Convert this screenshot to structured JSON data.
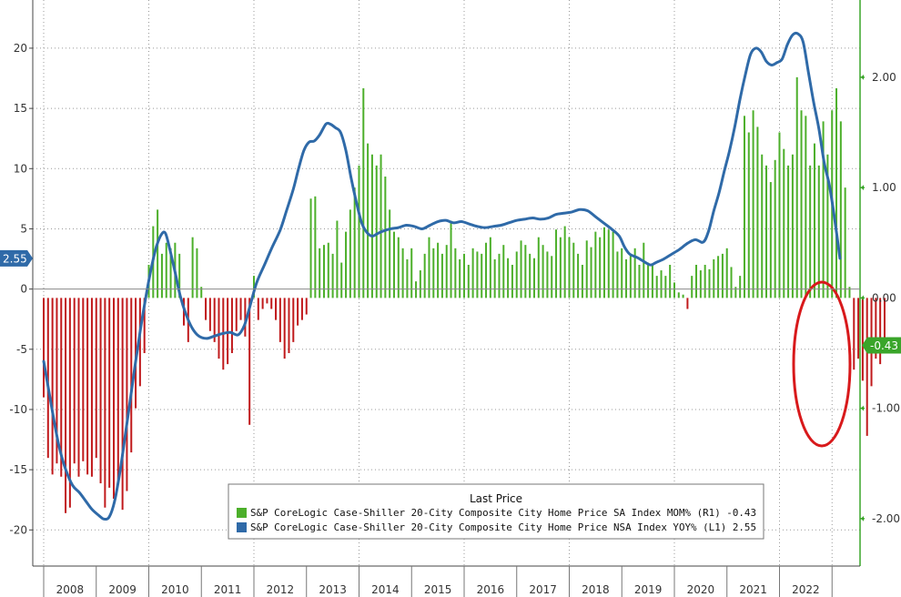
{
  "chart_data": {
    "type": "bar+line",
    "colors": {
      "mom_positive": "#4caf2a",
      "mom_negative": "#c0191b",
      "yoy_line": "#2f6aa8",
      "right_axis": "#3aa52a",
      "highlight_circle": "#d8191b",
      "grid": "#999999"
    },
    "left_axis": {
      "ylim": [
        -23,
        24
      ],
      "ticks": [
        20,
        15,
        10,
        5,
        0,
        -5,
        -10,
        -15,
        -20
      ],
      "tick_labels": [
        "20",
        "15",
        "10",
        "5",
        "0",
        "-5",
        "-10",
        "-15",
        "-20"
      ],
      "last_value_label": "2.55"
    },
    "right_axis": {
      "ylim": [
        -2.43,
        2.7
      ],
      "ticks": [
        2.0,
        1.0,
        0.0,
        -1.0,
        -2.0
      ],
      "tick_labels": [
        "2.00",
        "1.00",
        "0.00",
        "-1.00",
        "-2.00"
      ],
      "last_value_label": "-0.43"
    },
    "x_axis": {
      "start": 2008.0,
      "end": 2023.15,
      "years": [
        "2008",
        "2009",
        "2010",
        "2011",
        "2012",
        "2013",
        "2014",
        "2015",
        "2016",
        "2017",
        "2018",
        "2019",
        "2020",
        "2021",
        "2022"
      ]
    },
    "legend": {
      "title": "Last Price",
      "entries": [
        "S&P CoreLogic Case-Shiller 20-City Composite City Home Price SA Index MOM%  (R1) -0.43",
        "S&P CoreLogic Case-Shiller 20-City Composite City Home Price NSA Index YOY%  (L1) 2.55"
      ]
    },
    "mom_series": {
      "name": "S&P CoreLogic Case-Shiller 20-City Composite City Home Price SA Index MOM% (R1)",
      "axis": "right",
      "start": 2008.0,
      "step": 0.08333,
      "values": [
        -0.9,
        -1.45,
        -1.6,
        -1.5,
        -1.62,
        -1.95,
        -1.9,
        -1.5,
        -1.62,
        -1.48,
        -1.6,
        -1.62,
        -1.45,
        -1.68,
        -1.9,
        -1.72,
        -1.82,
        -1.65,
        -1.92,
        -1.75,
        -1.4,
        -1.0,
        -0.8,
        -0.5,
        0.3,
        0.65,
        0.8,
        0.4,
        0.5,
        0.45,
        0.5,
        0.4,
        -0.25,
        -0.4,
        0.55,
        0.45,
        0.1,
        -0.2,
        -0.3,
        -0.4,
        -0.55,
        -0.65,
        -0.6,
        -0.5,
        -0.3,
        -0.2,
        -0.35,
        -1.15,
        0.2,
        -0.2,
        -0.1,
        -0.05,
        -0.1,
        -0.2,
        -0.4,
        -0.55,
        -0.5,
        -0.4,
        -0.25,
        -0.2,
        -0.15,
        0.9,
        0.92,
        0.45,
        0.48,
        0.5,
        0.4,
        0.7,
        0.32,
        0.6,
        0.8,
        1.0,
        1.2,
        1.9,
        1.4,
        1.3,
        1.2,
        1.3,
        1.1,
        0.8,
        0.6,
        0.55,
        0.45,
        0.35,
        0.45,
        0.15,
        0.25,
        0.4,
        0.55,
        0.45,
        0.5,
        0.4,
        0.48,
        0.7,
        0.45,
        0.35,
        0.4,
        0.3,
        0.45,
        0.42,
        0.4,
        0.5,
        0.55,
        0.35,
        0.4,
        0.48,
        0.36,
        0.3,
        0.42,
        0.52,
        0.48,
        0.4,
        0.36,
        0.55,
        0.48,
        0.42,
        0.38,
        0.62,
        0.55,
        0.65,
        0.55,
        0.5,
        0.4,
        0.3,
        0.52,
        0.46,
        0.6,
        0.55,
        0.64,
        0.62,
        0.6,
        0.42,
        0.45,
        0.35,
        0.4,
        0.45,
        0.3,
        0.5,
        0.32,
        0.3,
        0.2,
        0.25,
        0.2,
        0.3,
        0.14,
        0.05,
        0.03,
        -0.1,
        0.2,
        0.3,
        0.25,
        0.3,
        0.26,
        0.35,
        0.38,
        0.4,
        0.45,
        0.28,
        0.1,
        0.2,
        1.65,
        1.5,
        1.7,
        1.55,
        1.3,
        1.2,
        1.05,
        1.25,
        1.5,
        1.35,
        1.2,
        1.3,
        2.0,
        1.7,
        1.65,
        1.2,
        1.4,
        1.2,
        1.6,
        1.3,
        1.7,
        1.9,
        1.6,
        1.0,
        0.1,
        -0.65,
        -0.55,
        -0.75,
        -1.25,
        -0.8,
        -0.55,
        -0.6,
        -0.43
      ]
    },
    "yoy_series": {
      "name": "S&P CoreLogic Case-Shiller 20-City Composite City Home Price NSA Index YOY% (L1)",
      "axis": "left",
      "points": [
        [
          2008.0,
          -6.0
        ],
        [
          2008.1,
          -8.5
        ],
        [
          2008.2,
          -11.0
        ],
        [
          2008.3,
          -13.2
        ],
        [
          2008.42,
          -15.0
        ],
        [
          2008.55,
          -16.3
        ],
        [
          2008.68,
          -16.9
        ],
        [
          2008.8,
          -17.6
        ],
        [
          2008.92,
          -18.3
        ],
        [
          2009.05,
          -18.8
        ],
        [
          2009.15,
          -19.1
        ],
        [
          2009.25,
          -18.9
        ],
        [
          2009.35,
          -17.6
        ],
        [
          2009.45,
          -15.2
        ],
        [
          2009.55,
          -12.2
        ],
        [
          2009.65,
          -9.1
        ],
        [
          2009.75,
          -6.0
        ],
        [
          2009.85,
          -3.1
        ],
        [
          2009.95,
          -0.5
        ],
        [
          2010.05,
          1.8
        ],
        [
          2010.15,
          3.6
        ],
        [
          2010.25,
          4.6
        ],
        [
          2010.32,
          4.6
        ],
        [
          2010.4,
          3.3
        ],
        [
          2010.5,
          1.4
        ],
        [
          2010.6,
          -0.6
        ],
        [
          2010.7,
          -2.0
        ],
        [
          2010.82,
          -3.2
        ],
        [
          2010.95,
          -3.9
        ],
        [
          2011.1,
          -4.1
        ],
        [
          2011.25,
          -3.9
        ],
        [
          2011.4,
          -3.7
        ],
        [
          2011.55,
          -3.6
        ],
        [
          2011.7,
          -3.8
        ],
        [
          2011.82,
          -3.0
        ],
        [
          2011.92,
          -1.5
        ],
        [
          2012.05,
          0.5
        ],
        [
          2012.2,
          2.0
        ],
        [
          2012.35,
          3.5
        ],
        [
          2012.5,
          4.9
        ],
        [
          2012.62,
          6.5
        ],
        [
          2012.75,
          8.3
        ],
        [
          2012.85,
          10.0
        ],
        [
          2012.95,
          11.5
        ],
        [
          2013.05,
          12.2
        ],
        [
          2013.15,
          12.3
        ],
        [
          2013.25,
          12.8
        ],
        [
          2013.37,
          13.7
        ],
        [
          2013.45,
          13.7
        ],
        [
          2013.55,
          13.4
        ],
        [
          2013.65,
          13.0
        ],
        [
          2013.75,
          11.5
        ],
        [
          2013.85,
          9.2
        ],
        [
          2013.95,
          7.2
        ],
        [
          2014.05,
          5.5
        ],
        [
          2014.15,
          4.7
        ],
        [
          2014.25,
          4.4
        ],
        [
          2014.35,
          4.6
        ],
        [
          2014.45,
          4.8
        ],
        [
          2014.6,
          5.0
        ],
        [
          2014.75,
          5.1
        ],
        [
          2014.9,
          5.3
        ],
        [
          2015.05,
          5.2
        ],
        [
          2015.2,
          5.0
        ],
        [
          2015.35,
          5.3
        ],
        [
          2015.5,
          5.6
        ],
        [
          2015.65,
          5.7
        ],
        [
          2015.8,
          5.5
        ],
        [
          2015.95,
          5.6
        ],
        [
          2016.1,
          5.4
        ],
        [
          2016.25,
          5.2
        ],
        [
          2016.4,
          5.1
        ],
        [
          2016.55,
          5.2
        ],
        [
          2016.7,
          5.3
        ],
        [
          2016.85,
          5.5
        ],
        [
          2017.0,
          5.7
        ],
        [
          2017.15,
          5.8
        ],
        [
          2017.3,
          5.9
        ],
        [
          2017.45,
          5.8
        ],
        [
          2017.6,
          5.9
        ],
        [
          2017.75,
          6.2
        ],
        [
          2017.9,
          6.3
        ],
        [
          2018.05,
          6.4
        ],
        [
          2018.2,
          6.6
        ],
        [
          2018.35,
          6.5
        ],
        [
          2018.5,
          6.0
        ],
        [
          2018.65,
          5.5
        ],
        [
          2018.8,
          5.0
        ],
        [
          2018.95,
          4.4
        ],
        [
          2019.05,
          3.5
        ],
        [
          2019.15,
          2.9
        ],
        [
          2019.3,
          2.6
        ],
        [
          2019.45,
          2.2
        ],
        [
          2019.55,
          2.0
        ],
        [
          2019.65,
          2.2
        ],
        [
          2019.8,
          2.5
        ],
        [
          2019.95,
          2.9
        ],
        [
          2020.1,
          3.3
        ],
        [
          2020.25,
          3.8
        ],
        [
          2020.4,
          4.1
        ],
        [
          2020.55,
          3.9
        ],
        [
          2020.65,
          4.8
        ],
        [
          2020.75,
          6.5
        ],
        [
          2020.85,
          8.0
        ],
        [
          2020.95,
          9.8
        ],
        [
          2021.05,
          11.5
        ],
        [
          2021.15,
          13.5
        ],
        [
          2021.25,
          15.8
        ],
        [
          2021.35,
          17.8
        ],
        [
          2021.45,
          19.5
        ],
        [
          2021.55,
          20.0
        ],
        [
          2021.65,
          19.7
        ],
        [
          2021.75,
          18.9
        ],
        [
          2021.85,
          18.6
        ],
        [
          2021.95,
          18.8
        ],
        [
          2022.05,
          19.1
        ],
        [
          2022.15,
          20.3
        ],
        [
          2022.25,
          21.1
        ],
        [
          2022.35,
          21.2
        ],
        [
          2022.45,
          20.5
        ],
        [
          2022.55,
          18.0
        ],
        [
          2022.65,
          15.5
        ],
        [
          2022.75,
          13.3
        ],
        [
          2022.85,
          10.5
        ],
        [
          2022.95,
          8.6
        ],
        [
          2023.05,
          5.8
        ],
        [
          2023.15,
          2.55
        ]
      ]
    }
  }
}
